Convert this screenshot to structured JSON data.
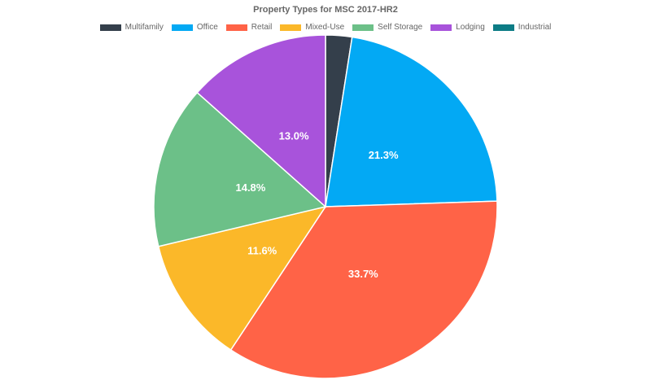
{
  "chart_data": {
    "type": "pie",
    "title": "Property Types for MSC 2017-HR2",
    "legend_position": "top",
    "slices": [
      {
        "name": "Multifamily",
        "value": 2.4,
        "label": "",
        "color": "#343f4b"
      },
      {
        "name": "Office",
        "value": 21.3,
        "label": "21.3%",
        "color": "#03a9f4"
      },
      {
        "name": "Retail",
        "value": 33.7,
        "label": "33.7%",
        "color": "#ff6347"
      },
      {
        "name": "Mixed-Use",
        "value": 11.6,
        "label": "11.6%",
        "color": "#fbb829"
      },
      {
        "name": "Self Storage",
        "value": 14.8,
        "label": "14.8%",
        "color": "#6cc088"
      },
      {
        "name": "Lodging",
        "value": 13.0,
        "label": "13.0%",
        "color": "#a853db"
      },
      {
        "name": "Industrial",
        "value": 0.0,
        "label": "",
        "color": "#0c7c85"
      }
    ]
  }
}
